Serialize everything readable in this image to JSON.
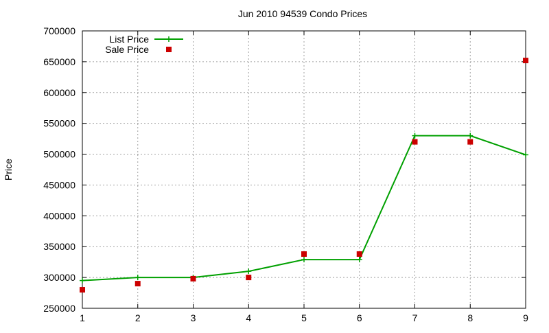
{
  "chart_data": {
    "type": "line",
    "title": "Jun 2010 94539 Condo Prices",
    "xlabel": "",
    "ylabel": "Price",
    "x": [
      1,
      2,
      3,
      4,
      5,
      6,
      7,
      8,
      9
    ],
    "xlim": [
      1,
      9
    ],
    "ylim": [
      250000,
      700000
    ],
    "xticks": [
      "1",
      "2",
      "3",
      "4",
      "5",
      "6",
      "7",
      "8",
      "9"
    ],
    "yticks": [
      250000,
      300000,
      350000,
      400000,
      450000,
      500000,
      550000,
      600000,
      650000,
      700000
    ],
    "ytick_labels": [
      "250000",
      "300000",
      "350000",
      "400000",
      "450000",
      "500000",
      "550000",
      "600000",
      "650000",
      "700000"
    ],
    "grid": true,
    "legend_position": "top-left",
    "series": [
      {
        "name": "List Price",
        "style": "linespoints",
        "marker": "plus",
        "color": "#00a000",
        "values": [
          295000,
          300000,
          300000,
          310000,
          329000,
          329000,
          530000,
          530000,
          499000
        ]
      },
      {
        "name": "Sale Price",
        "style": "points",
        "marker": "square",
        "color": "#cc0000",
        "values": [
          280000,
          290000,
          298000,
          300000,
          338000,
          338000,
          520000,
          520000,
          652000
        ]
      }
    ]
  }
}
